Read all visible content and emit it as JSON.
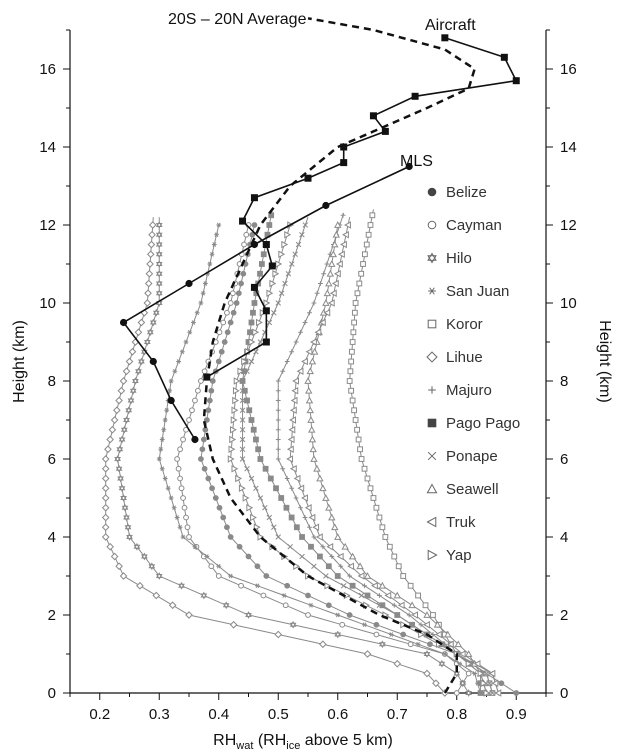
{
  "chart_data": {
    "type": "line",
    "xlabel": {
      "main": "RH",
      "sub1": "wat",
      "mid": " (RH",
      "sub2": "ice",
      "tail": " above 5 km)"
    },
    "ylabel_left": "Height (km)",
    "ylabel_right": "Height (km)",
    "xlim": [
      0.15,
      0.95
    ],
    "ylim": [
      0,
      17
    ],
    "x_ticks": [
      0.2,
      0.3,
      0.4,
      0.5,
      0.6,
      0.7,
      0.8,
      0.9
    ],
    "x_tick_labels": [
      "0.2",
      "0.3",
      "0.4",
      "0.5",
      "0.6",
      "0.7",
      "0.8",
      "0.9"
    ],
    "y_ticks": [
      0,
      2,
      4,
      6,
      8,
      10,
      12,
      14,
      16
    ],
    "y_tick_labels": [
      "0",
      "2",
      "4",
      "6",
      "8",
      "10",
      "12",
      "14",
      "16"
    ],
    "grid": false,
    "legend_position": "right",
    "annotations": [
      {
        "text": "20S – 20N Average",
        "x": 0.34,
        "y": 17.2,
        "target": "average"
      },
      {
        "text": "Aircraft",
        "x": 0.8,
        "y": 17.2,
        "target": "aircraft"
      },
      {
        "text": "MLS",
        "x": 0.73,
        "y": 13.8,
        "target": "mls"
      }
    ],
    "station_color": "#8a8a8a",
    "dark_color": "#111111",
    "series": [
      {
        "name": "Belize",
        "marker": "circle-filled",
        "heights": [
          0.0,
          0.5,
          1.0,
          2.0,
          3.0,
          4.0,
          6.0,
          8.0,
          10.0,
          12.0
        ],
        "values": [
          0.9,
          0.85,
          0.8,
          0.62,
          0.48,
          0.42,
          0.37,
          0.39,
          0.43,
          0.46
        ]
      },
      {
        "name": "Cayman",
        "marker": "circle-open",
        "heights": [
          0.0,
          0.5,
          1.0,
          2.0,
          3.0,
          4.0,
          6.0,
          8.0,
          10.0,
          12.0
        ],
        "values": [
          0.8,
          0.82,
          0.78,
          0.55,
          0.4,
          0.35,
          0.33,
          0.37,
          0.42,
          0.45
        ]
      },
      {
        "name": "Hilo",
        "marker": "star-open",
        "heights": [
          0.0,
          0.5,
          1.0,
          2.0,
          3.0,
          4.0,
          6.0,
          8.0,
          10.0,
          12.2
        ],
        "values": [
          0.82,
          0.8,
          0.75,
          0.45,
          0.3,
          0.25,
          0.23,
          0.26,
          0.3,
          0.3
        ]
      },
      {
        "name": "San Juan",
        "marker": "asterisk",
        "heights": [
          0.0,
          0.5,
          1.0,
          2.0,
          3.0,
          4.0,
          6.0,
          8.0,
          10.0,
          12.0
        ],
        "values": [
          0.84,
          0.83,
          0.78,
          0.6,
          0.42,
          0.34,
          0.3,
          0.32,
          0.37,
          0.4
        ]
      },
      {
        "name": "Koror",
        "marker": "square-open",
        "heights": [
          0.0,
          0.5,
          1.0,
          2.0,
          3.0,
          4.0,
          6.0,
          8.0,
          10.0,
          12.4
        ],
        "values": [
          0.86,
          0.85,
          0.8,
          0.76,
          0.71,
          0.68,
          0.64,
          0.62,
          0.63,
          0.66
        ]
      },
      {
        "name": "Lihue",
        "marker": "diamond-open",
        "heights": [
          0.0,
          0.5,
          1.0,
          2.0,
          3.0,
          4.0,
          6.0,
          8.0,
          10.0,
          12.2
        ],
        "values": [
          0.78,
          0.75,
          0.65,
          0.35,
          0.24,
          0.21,
          0.21,
          0.24,
          0.28,
          0.29
        ]
      },
      {
        "name": "Majuro",
        "marker": "plus",
        "heights": [
          0.0,
          0.5,
          1.0,
          2.0,
          3.0,
          4.0,
          6.0,
          8.0,
          10.0,
          12.3
        ],
        "values": [
          0.87,
          0.86,
          0.8,
          0.72,
          0.62,
          0.56,
          0.5,
          0.5,
          0.56,
          0.61
        ]
      },
      {
        "name": "Pago Pago",
        "marker": "square-filled",
        "heights": [
          0.0,
          0.5,
          1.0,
          2.0,
          3.0,
          4.0,
          6.0,
          8.0,
          10.0,
          12.4
        ],
        "values": [
          0.84,
          0.84,
          0.8,
          0.7,
          0.6,
          0.54,
          0.47,
          0.44,
          0.46,
          0.49
        ]
      },
      {
        "name": "Ponape",
        "marker": "x",
        "heights": [
          0.0,
          0.5,
          1.0,
          2.0,
          3.0,
          4.0,
          6.0,
          8.0,
          10.0,
          12.2
        ],
        "values": [
          0.86,
          0.85,
          0.8,
          0.7,
          0.58,
          0.5,
          0.44,
          0.44,
          0.5,
          0.55
        ]
      },
      {
        "name": "Seawell",
        "marker": "triangle-up-open",
        "heights": [
          0.0,
          0.5,
          1.0,
          2.0,
          3.0,
          4.0,
          6.0,
          8.0,
          10.0,
          12.0
        ],
        "values": [
          0.85,
          0.84,
          0.82,
          0.75,
          0.65,
          0.6,
          0.56,
          0.55,
          0.58,
          0.6
        ]
      },
      {
        "name": "Truk",
        "marker": "triangle-left-open",
        "heights": [
          0.0,
          0.5,
          1.0,
          2.0,
          3.0,
          4.0,
          6.0,
          8.0,
          10.0,
          12.2
        ],
        "values": [
          0.87,
          0.86,
          0.81,
          0.73,
          0.64,
          0.57,
          0.52,
          0.53,
          0.59,
          0.62
        ]
      },
      {
        "name": "Yap",
        "marker": "triangle-right-open",
        "heights": [
          0.0,
          0.5,
          1.0,
          2.0,
          3.0,
          4.0,
          6.0,
          8.0,
          10.0,
          12.0
        ],
        "values": [
          0.85,
          0.84,
          0.8,
          0.68,
          0.55,
          0.47,
          0.42,
          0.43,
          0.48,
          0.52
        ]
      }
    ],
    "average": {
      "heights": [
        0.0,
        0.5,
        1.0,
        1.5,
        2.0,
        3.0,
        4.0,
        5.0,
        6.0,
        7.0,
        8.0,
        9.0,
        10.0,
        11.0,
        12.0,
        13.0,
        14.0,
        15.0,
        15.5,
        16.0,
        16.5,
        17.0,
        17.3
      ],
      "values": [
        0.78,
        0.8,
        0.8,
        0.75,
        0.67,
        0.55,
        0.47,
        0.42,
        0.39,
        0.375,
        0.38,
        0.39,
        0.41,
        0.44,
        0.47,
        0.52,
        0.6,
        0.75,
        0.82,
        0.83,
        0.78,
        0.66,
        0.55
      ]
    },
    "aircraft": {
      "heights": [
        8.1,
        9.0,
        9.8,
        10.4,
        10.95,
        11.5,
        12.1,
        12.7,
        13.2,
        13.6,
        14.0,
        14.4,
        14.8,
        15.3,
        15.7,
        16.3,
        16.8
      ],
      "values": [
        0.38,
        0.48,
        0.48,
        0.46,
        0.49,
        0.48,
        0.44,
        0.46,
        0.55,
        0.61,
        0.61,
        0.68,
        0.66,
        0.73,
        0.9,
        0.88,
        0.78
      ]
    },
    "mls": {
      "heights": [
        6.5,
        7.5,
        8.5,
        9.5,
        10.5,
        11.5,
        12.5,
        13.5
      ],
      "values": [
        0.36,
        0.32,
        0.29,
        0.24,
        0.35,
        0.46,
        0.58,
        0.72
      ]
    }
  }
}
